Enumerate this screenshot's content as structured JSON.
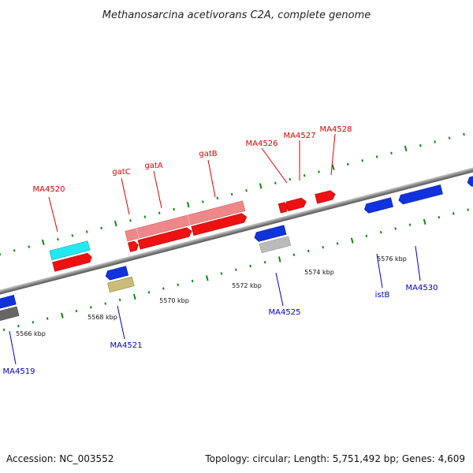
{
  "title": "Methanosarcina acetivorans C2A, complete genome",
  "footer": {
    "accession": "Accession: NC_003552",
    "info": "Topology: circular; Length: 5,751,492 bp; Genes: 4,609"
  },
  "colors": {
    "forward": "#ee1111",
    "forward_light": "#ee8888",
    "reverse": "#1133dd",
    "cyan": "#22e8f0",
    "grey": "#bbbbbb",
    "dark_grey": "#666666",
    "olive": "#c8bc78",
    "tick": "#118811",
    "label_red": "#dd0000",
    "label_blue": "#0000cc"
  },
  "scale_labels": [
    "5566 kbp",
    "5568 kbp",
    "5570 kbp",
    "5572 kbp",
    "5574 kbp",
    "5576 kbp"
  ],
  "forward_labels": [
    "MA4520",
    "gatC",
    "gatA",
    "gatB",
    "MA4526",
    "MA4527",
    "MA4528"
  ],
  "reverse_labels": [
    "MA4519",
    "MA4521",
    "MA4525",
    "istB",
    "MA4530"
  ]
}
